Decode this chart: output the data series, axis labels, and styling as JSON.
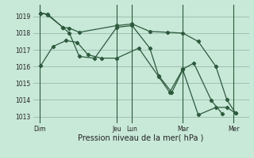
{
  "xlabel": "Pression niveau de la mer( hPa )",
  "background_color": "#c8e8d8",
  "grid_color": "#99bbaa",
  "line_color": "#2d5a3d",
  "vline_color": "#2d5a3d",
  "ylim_min": 1012.6,
  "ylim_max": 1019.7,
  "yticks": [
    1013,
    1014,
    1015,
    1016,
    1017,
    1018,
    1019
  ],
  "day_labels": [
    "Dim",
    "Jeu",
    "Lun",
    "Mar",
    "Mer"
  ],
  "day_x": [
    0.0,
    3.5,
    4.2,
    6.5,
    8.8
  ],
  "xlim_min": -0.3,
  "xlim_max": 9.5,
  "s1_x": [
    0.05,
    0.35,
    1.05,
    1.35,
    1.8,
    3.5,
    4.2,
    5.0,
    5.8,
    6.5,
    7.2,
    8.0,
    8.5,
    8.9
  ],
  "s1_y": [
    1019.2,
    1019.15,
    1018.35,
    1018.3,
    1018.05,
    1018.45,
    1018.55,
    1018.1,
    1018.05,
    1018.0,
    1017.5,
    1016.0,
    1014.0,
    1013.2
  ],
  "s2_x": [
    0.05,
    0.35,
    1.05,
    1.35,
    1.8,
    2.5,
    3.5,
    4.2,
    5.0,
    5.4,
    6.0,
    6.5,
    7.2,
    8.0,
    8.5,
    8.9
  ],
  "s2_y": [
    1019.2,
    1019.1,
    1018.35,
    1018.0,
    1016.6,
    1016.5,
    1018.35,
    1018.45,
    1017.1,
    1015.45,
    1014.45,
    1015.8,
    1013.1,
    1013.55,
    1013.55,
    1013.2
  ],
  "s3_x": [
    0.05,
    0.6,
    1.2,
    1.7,
    2.2,
    2.8,
    3.5,
    4.5,
    5.4,
    5.9,
    6.5,
    7.0,
    7.8,
    8.3
  ],
  "s3_y": [
    1016.05,
    1017.2,
    1017.55,
    1017.45,
    1016.7,
    1016.5,
    1016.5,
    1017.1,
    1015.4,
    1014.45,
    1015.85,
    1016.2,
    1013.95,
    1013.15
  ],
  "figsize": [
    3.2,
    2.0
  ],
  "dpi": 100,
  "tick_fontsize": 5.5,
  "xlabel_fontsize": 7
}
